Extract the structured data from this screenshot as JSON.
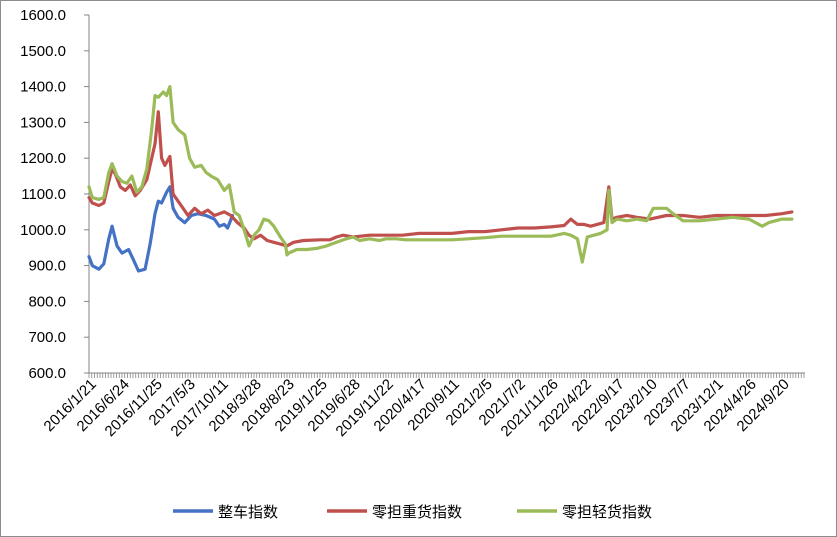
{
  "chart_data": {
    "type": "line",
    "title": "",
    "xlabel": "",
    "ylabel": "",
    "ylim": [
      600,
      1600
    ],
    "y_ticks": [
      600,
      700,
      800,
      900,
      1000,
      1100,
      1200,
      1300,
      1400,
      1500,
      1600
    ],
    "y_tick_labels": [
      "600.0",
      "700.0",
      "800.0",
      "900.0",
      "1000.0",
      "1100.0",
      "1200.0",
      "1300.0",
      "1400.0",
      "1500.0",
      "1600.0"
    ],
    "x_tick_labels": [
      "2016/1/21",
      "2016/6/24",
      "2016/11/25",
      "2017/5/3",
      "2017/10/11",
      "2018/3/28",
      "2018/8/23",
      "2019/1/25",
      "2019/6/28",
      "2019/11/22",
      "2020/4/17",
      "2020/9/11",
      "2021/2/5",
      "2021/7/2",
      "2021/11/26",
      "2022/4/22",
      "2022/9/17",
      "2023/2/10",
      "2023/7/7",
      "2023/12/1",
      "2024/4/26",
      "2024/9/20"
    ],
    "x_index_range": [
      0,
      21.3
    ],
    "grid": false,
    "legend_position": "bottom",
    "colors": {
      "整车指数": "#4472c4",
      "零担重货指数": "#c0504d",
      "零担轻货指数": "#9bbb59"
    },
    "series": [
      {
        "name": "整车指数",
        "points": [
          [
            0,
            925
          ],
          [
            0.1,
            900
          ],
          [
            0.3,
            890
          ],
          [
            0.45,
            905
          ],
          [
            0.6,
            975
          ],
          [
            0.7,
            1010
          ],
          [
            0.85,
            955
          ],
          [
            1.0,
            935
          ],
          [
            1.2,
            945
          ],
          [
            1.35,
            915
          ],
          [
            1.5,
            885
          ],
          [
            1.7,
            890
          ],
          [
            1.85,
            960
          ],
          [
            2.0,
            1045
          ],
          [
            2.1,
            1080
          ],
          [
            2.2,
            1075
          ],
          [
            2.35,
            1105
          ],
          [
            2.45,
            1120
          ],
          [
            2.55,
            1060
          ],
          [
            2.7,
            1035
          ],
          [
            2.9,
            1020
          ],
          [
            3.1,
            1040
          ],
          [
            3.3,
            1045
          ],
          [
            3.55,
            1040
          ],
          [
            3.8,
            1030
          ],
          [
            3.95,
            1010
          ],
          [
            4.1,
            1015
          ],
          [
            4.2,
            1005
          ],
          [
            4.35,
            1040
          ]
        ]
      },
      {
        "name": "零担重货指数",
        "points": [
          [
            0,
            1090
          ],
          [
            0.1,
            1075
          ],
          [
            0.3,
            1068
          ],
          [
            0.45,
            1075
          ],
          [
            0.6,
            1135
          ],
          [
            0.7,
            1170
          ],
          [
            0.8,
            1155
          ],
          [
            0.95,
            1120
          ],
          [
            1.1,
            1110
          ],
          [
            1.25,
            1125
          ],
          [
            1.4,
            1095
          ],
          [
            1.55,
            1110
          ],
          [
            1.75,
            1140
          ],
          [
            1.9,
            1200
          ],
          [
            2.0,
            1240
          ],
          [
            2.1,
            1330
          ],
          [
            2.2,
            1200
          ],
          [
            2.3,
            1180
          ],
          [
            2.45,
            1205
          ],
          [
            2.55,
            1100
          ],
          [
            2.7,
            1080
          ],
          [
            2.85,
            1060
          ],
          [
            3.0,
            1040
          ],
          [
            3.2,
            1060
          ],
          [
            3.4,
            1045
          ],
          [
            3.6,
            1055
          ],
          [
            3.8,
            1040
          ],
          [
            4.1,
            1050
          ],
          [
            4.3,
            1040
          ],
          [
            4.5,
            1020
          ],
          [
            4.7,
            1005
          ],
          [
            4.85,
            985
          ],
          [
            5.0,
            975
          ],
          [
            5.2,
            985
          ],
          [
            5.4,
            970
          ],
          [
            5.6,
            965
          ],
          [
            5.8,
            960
          ],
          [
            6.0,
            955
          ],
          [
            6.2,
            965
          ],
          [
            6.5,
            970
          ],
          [
            7.0,
            972
          ],
          [
            7.3,
            972
          ],
          [
            7.5,
            980
          ],
          [
            7.7,
            985
          ],
          [
            8.0,
            980
          ],
          [
            8.5,
            985
          ],
          [
            9.0,
            985
          ],
          [
            9.5,
            985
          ],
          [
            10.0,
            990
          ],
          [
            10.5,
            990
          ],
          [
            11.0,
            990
          ],
          [
            11.5,
            995
          ],
          [
            12.0,
            995
          ],
          [
            12.5,
            1000
          ],
          [
            13.0,
            1005
          ],
          [
            13.5,
            1005
          ],
          [
            14.0,
            1008
          ],
          [
            14.4,
            1012
          ],
          [
            14.6,
            1030
          ],
          [
            14.8,
            1015
          ],
          [
            15.0,
            1015
          ],
          [
            15.2,
            1010
          ],
          [
            15.4,
            1015
          ],
          [
            15.6,
            1020
          ],
          [
            15.75,
            1120
          ],
          [
            15.85,
            1030
          ],
          [
            16.0,
            1035
          ],
          [
            16.3,
            1040
          ],
          [
            16.6,
            1035
          ],
          [
            17.0,
            1030
          ],
          [
            17.5,
            1040
          ],
          [
            18.0,
            1040
          ],
          [
            18.5,
            1035
          ],
          [
            19.0,
            1040
          ],
          [
            19.5,
            1040
          ],
          [
            20.0,
            1040
          ],
          [
            20.5,
            1040
          ],
          [
            21.0,
            1045
          ],
          [
            21.3,
            1050
          ]
        ]
      },
      {
        "name": "零担轻货指数",
        "points": [
          [
            0,
            1120
          ],
          [
            0.1,
            1090
          ],
          [
            0.3,
            1085
          ],
          [
            0.45,
            1090
          ],
          [
            0.6,
            1160
          ],
          [
            0.7,
            1185
          ],
          [
            0.85,
            1150
          ],
          [
            1.0,
            1135
          ],
          [
            1.15,
            1130
          ],
          [
            1.3,
            1150
          ],
          [
            1.45,
            1105
          ],
          [
            1.6,
            1120
          ],
          [
            1.75,
            1170
          ],
          [
            1.9,
            1280
          ],
          [
            2.0,
            1375
          ],
          [
            2.1,
            1370
          ],
          [
            2.25,
            1385
          ],
          [
            2.35,
            1375
          ],
          [
            2.45,
            1400
          ],
          [
            2.55,
            1300
          ],
          [
            2.7,
            1280
          ],
          [
            2.9,
            1265
          ],
          [
            3.05,
            1200
          ],
          [
            3.2,
            1175
          ],
          [
            3.4,
            1180
          ],
          [
            3.55,
            1160
          ],
          [
            3.7,
            1150
          ],
          [
            3.9,
            1140
          ],
          [
            4.1,
            1110
          ],
          [
            4.25,
            1125
          ],
          [
            4.4,
            1050
          ],
          [
            4.55,
            1040
          ],
          [
            4.7,
            1000
          ],
          [
            4.85,
            955
          ],
          [
            5.0,
            985
          ],
          [
            5.15,
            1000
          ],
          [
            5.3,
            1030
          ],
          [
            5.45,
            1025
          ],
          [
            5.6,
            1010
          ],
          [
            5.8,
            980
          ],
          [
            5.95,
            960
          ],
          [
            6.0,
            930
          ],
          [
            6.05,
            935
          ],
          [
            6.3,
            945
          ],
          [
            6.6,
            945
          ],
          [
            6.9,
            948
          ],
          [
            7.2,
            955
          ],
          [
            7.5,
            965
          ],
          [
            7.8,
            975
          ],
          [
            8.0,
            980
          ],
          [
            8.2,
            970
          ],
          [
            8.5,
            975
          ],
          [
            8.8,
            970
          ],
          [
            9.0,
            975
          ],
          [
            9.3,
            975
          ],
          [
            9.6,
            972
          ],
          [
            10.0,
            972
          ],
          [
            10.5,
            972
          ],
          [
            11.0,
            972
          ],
          [
            11.5,
            975
          ],
          [
            12.0,
            978
          ],
          [
            12.5,
            982
          ],
          [
            13.0,
            982
          ],
          [
            13.5,
            982
          ],
          [
            14.0,
            982
          ],
          [
            14.4,
            990
          ],
          [
            14.6,
            985
          ],
          [
            14.8,
            975
          ],
          [
            14.95,
            910
          ],
          [
            15.1,
            980
          ],
          [
            15.3,
            985
          ],
          [
            15.5,
            990
          ],
          [
            15.7,
            1000
          ],
          [
            15.75,
            1110
          ],
          [
            15.85,
            1020
          ],
          [
            16.0,
            1030
          ],
          [
            16.3,
            1025
          ],
          [
            16.6,
            1030
          ],
          [
            16.9,
            1025
          ],
          [
            17.1,
            1060
          ],
          [
            17.5,
            1060
          ],
          [
            17.7,
            1045
          ],
          [
            18.0,
            1025
          ],
          [
            18.5,
            1025
          ],
          [
            19.0,
            1030
          ],
          [
            19.5,
            1035
          ],
          [
            20.0,
            1030
          ],
          [
            20.4,
            1010
          ],
          [
            20.6,
            1020
          ],
          [
            20.8,
            1025
          ],
          [
            21.0,
            1030
          ],
          [
            21.3,
            1030
          ]
        ]
      }
    ]
  }
}
